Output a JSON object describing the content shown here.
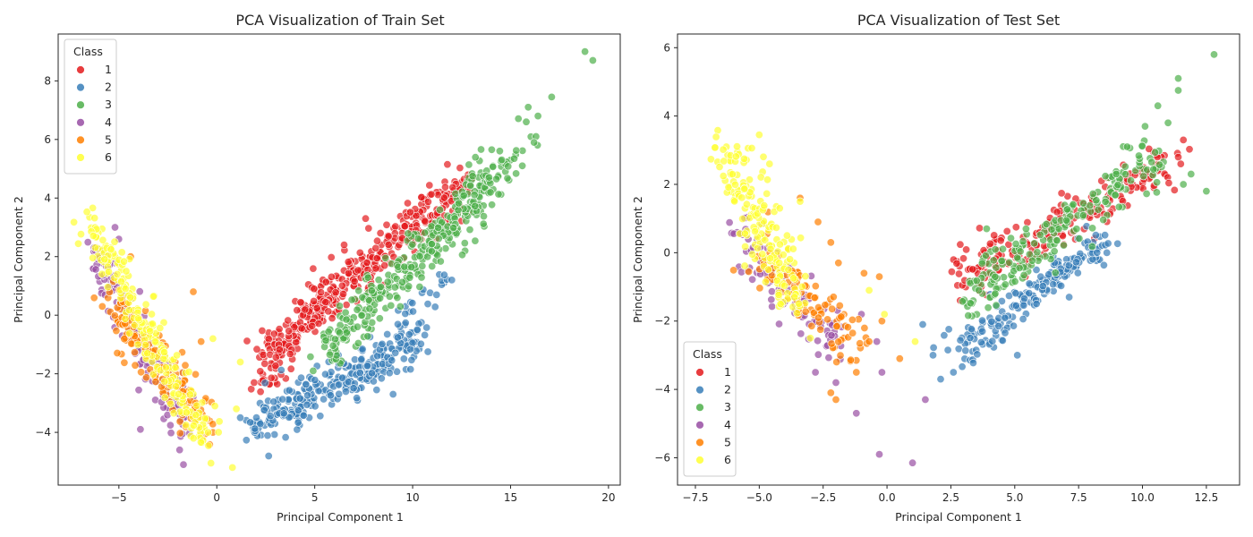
{
  "palette": {
    "1": "#e41a1c",
    "2": "#377eb8",
    "3": "#4daf4a",
    "4": "#984ea3",
    "5": "#ff7f00",
    "6": "#ffff33"
  },
  "chart_data": [
    {
      "type": "scatter",
      "title": "PCA Visualization of Train Set",
      "xlabel": "Principal Component 1",
      "ylabel": "Principal Component 2",
      "xlim": [
        -8.1,
        20.6
      ],
      "ylim": [
        -5.8,
        9.6
      ],
      "xticks": [
        -5,
        0,
        5,
        10,
        15,
        20
      ],
      "yticks": [
        -4,
        -2,
        0,
        2,
        4,
        6,
        8
      ],
      "legend": {
        "title": "Class",
        "placement": "upper-left",
        "entries": [
          "1",
          "2",
          "3",
          "4",
          "5",
          "6"
        ]
      },
      "series": [
        {
          "name": "1",
          "clusters": [
            {
              "x0": 2.5,
              "y0": -1.3,
              "x1": 12.5,
              "y1": 4.4,
              "spread": 0.42,
              "n": 380
            },
            {
              "x0": 2.0,
              "y0": -2.6,
              "x1": 3.5,
              "y1": -1.0,
              "spread": 0.35,
              "n": 40
            }
          ],
          "points": [
            [
              12.8,
              4.7
            ],
            [
              7.6,
              3.3
            ],
            [
              6.5,
              2.4
            ]
          ]
        },
        {
          "name": "2",
          "clusters": [
            {
              "x0": 2.0,
              "y0": -3.7,
              "x1": 10.5,
              "y1": -0.8,
              "spread": 0.42,
              "n": 300
            },
            {
              "x0": 9.5,
              "y0": 0.0,
              "x1": 11.8,
              "y1": 1.4,
              "spread": 0.3,
              "n": 20
            }
          ],
          "points": [
            [
              9.0,
              -2.7
            ],
            [
              12.0,
              1.2
            ],
            [
              1.2,
              -3.5
            ]
          ]
        },
        {
          "name": "3",
          "clusters": [
            {
              "x0": 5.5,
              "y0": -1.3,
              "x1": 14.0,
              "y1": 4.6,
              "spread": 0.45,
              "n": 300
            },
            {
              "x0": 11.0,
              "y0": 2.5,
              "x1": 15.5,
              "y1": 5.8,
              "spread": 0.5,
              "n": 60
            }
          ],
          "points": [
            [
              18.8,
              9.0
            ],
            [
              19.2,
              8.7
            ],
            [
              17.1,
              7.45
            ],
            [
              16.4,
              6.8
            ],
            [
              15.9,
              7.1
            ],
            [
              15.8,
              6.6
            ],
            [
              16.3,
              6.1
            ],
            [
              16.2,
              5.9
            ],
            [
              15.6,
              5.1
            ]
          ]
        },
        {
          "name": "4",
          "clusters": [
            {
              "x0": -6.3,
              "y0": 2.2,
              "x1": -1.5,
              "y1": -3.8,
              "spread": 0.38,
              "n": 170
            }
          ],
          "points": [
            [
              -1.7,
              -5.1
            ],
            [
              -1.9,
              -4.6
            ],
            [
              -3.9,
              -3.9
            ],
            [
              -5.2,
              3.0
            ],
            [
              -5.0,
              2.6
            ]
          ]
        },
        {
          "name": "5",
          "clusters": [
            {
              "x0": -5.5,
              "y0": 0.5,
              "x1": -0.5,
              "y1": -3.8,
              "spread": 0.42,
              "n": 170
            }
          ],
          "points": [
            [
              -1.2,
              0.8
            ],
            [
              -0.8,
              -0.9
            ],
            [
              -4.4,
              2.0
            ],
            [
              -0.2,
              -4.0
            ]
          ]
        },
        {
          "name": "6",
          "clusters": [
            {
              "x0": -6.6,
              "y0": 3.2,
              "x1": -0.5,
              "y1": -4.2,
              "spread": 0.38,
              "n": 200
            }
          ],
          "points": [
            [
              0.8,
              -5.2
            ],
            [
              -0.3,
              -5.05
            ],
            [
              1.2,
              -1.6
            ],
            [
              -0.2,
              -0.8
            ],
            [
              1.0,
              -3.2
            ],
            [
              -0.1,
              -3.1
            ]
          ]
        }
      ]
    },
    {
      "type": "scatter",
      "title": "PCA Visualization of Test Set",
      "xlabel": "Principal Component 1",
      "ylabel": "Principal Component 2",
      "xlim": [
        -8.2,
        13.8
      ],
      "ylim": [
        -6.8,
        6.4
      ],
      "xticks": [
        -7.5,
        -5.0,
        -2.5,
        0.0,
        2.5,
        5.0,
        7.5,
        10.0,
        12.5
      ],
      "yticks": [
        -6,
        -4,
        -2,
        0,
        2,
        4,
        6
      ],
      "legend": {
        "title": "Class",
        "placement": "lower-left",
        "entries": [
          "1",
          "2",
          "3",
          "4",
          "5",
          "6"
        ]
      },
      "series": [
        {
          "name": "1",
          "clusters": [
            {
              "x0": 2.8,
              "y0": -0.8,
              "x1": 11.0,
              "y1": 2.6,
              "spread": 0.35,
              "n": 230
            }
          ],
          "points": [
            [
              11.6,
              3.3
            ],
            [
              11.4,
              2.8
            ],
            [
              11.5,
              2.6
            ],
            [
              10.6,
              2.4
            ]
          ]
        },
        {
          "name": "2",
          "clusters": [
            {
              "x0": 2.5,
              "y0": -3.0,
              "x1": 8.5,
              "y1": 0.3,
              "spread": 0.33,
              "n": 190
            }
          ],
          "points": [
            [
              1.4,
              -2.1
            ],
            [
              2.1,
              -3.7
            ],
            [
              1.8,
              -3.0
            ],
            [
              5.1,
              -3.0
            ],
            [
              2.6,
              -3.5
            ]
          ]
        },
        {
          "name": "3",
          "clusters": [
            {
              "x0": 3.0,
              "y0": -1.5,
              "x1": 10.5,
              "y1": 2.8,
              "spread": 0.42,
              "n": 210
            }
          ],
          "points": [
            [
              12.8,
              5.8
            ],
            [
              11.4,
              5.1
            ],
            [
              11.4,
              4.75
            ],
            [
              10.6,
              4.3
            ],
            [
              10.1,
              3.7
            ],
            [
              11.0,
              3.8
            ],
            [
              9.4,
              3.1
            ],
            [
              12.5,
              1.8
            ],
            [
              11.6,
              2.0
            ],
            [
              11.9,
              2.3
            ],
            [
              3.9,
              0.7
            ]
          ]
        },
        {
          "name": "4",
          "clusters": [
            {
              "x0": -6.0,
              "y0": 0.6,
              "x1": -2.0,
              "y1": -2.6,
              "spread": 0.38,
              "n": 95
            }
          ],
          "points": [
            [
              -1.2,
              -4.7
            ],
            [
              -0.3,
              -5.9
            ],
            [
              1.0,
              -6.15
            ],
            [
              1.5,
              -4.3
            ],
            [
              -0.2,
              -3.5
            ],
            [
              -2.0,
              -3.8
            ],
            [
              -2.8,
              -3.5
            ],
            [
              -1.0,
              -1.8
            ],
            [
              -0.4,
              -2.6
            ]
          ]
        },
        {
          "name": "5",
          "clusters": [
            {
              "x0": -5.0,
              "y0": 0.2,
              "x1": -1.5,
              "y1": -2.8,
              "spread": 0.45,
              "n": 100
            }
          ],
          "points": [
            [
              -2.2,
              -4.1
            ],
            [
              -2.0,
              -4.3
            ],
            [
              -3.4,
              1.6
            ],
            [
              -2.7,
              0.9
            ],
            [
              0.5,
              -3.1
            ],
            [
              -0.2,
              -2.0
            ],
            [
              -0.3,
              -0.7
            ],
            [
              -0.9,
              -0.6
            ],
            [
              -0.7,
              -2.6
            ],
            [
              -1.2,
              -3.5
            ],
            [
              -2.2,
              0.3
            ],
            [
              -1.9,
              -0.3
            ]
          ]
        },
        {
          "name": "6",
          "clusters": [
            {
              "x0": -6.4,
              "y0": 3.0,
              "x1": -3.5,
              "y1": -1.5,
              "spread": 0.38,
              "n": 180
            }
          ],
          "points": [
            [
              -5.0,
              3.45
            ],
            [
              -4.6,
              2.6
            ],
            [
              -3.4,
              1.5
            ],
            [
              -4.2,
              1.3
            ],
            [
              -0.7,
              -1.1
            ],
            [
              1.1,
              -2.6
            ],
            [
              -0.1,
              -1.8
            ],
            [
              -3.0,
              -2.5
            ]
          ]
        }
      ]
    }
  ]
}
